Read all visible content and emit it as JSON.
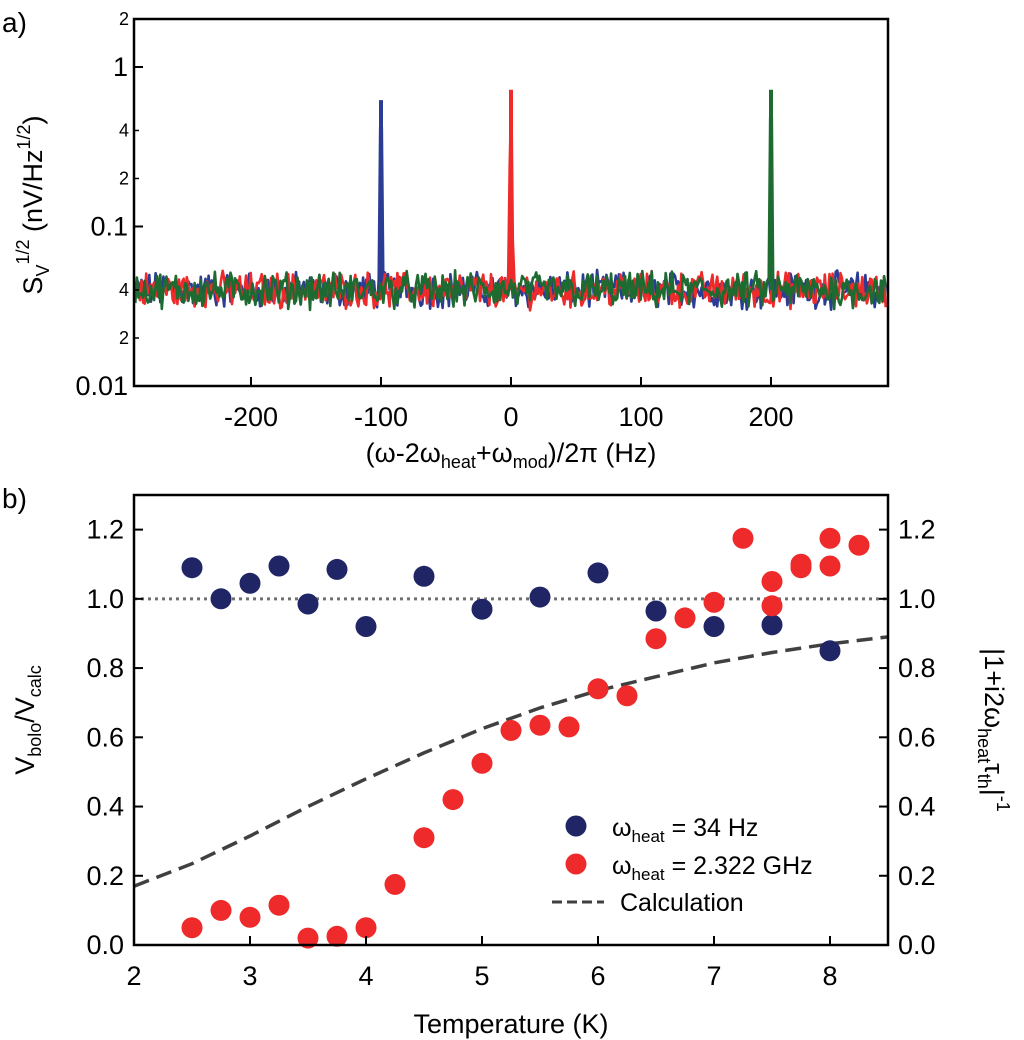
{
  "chart_data": [
    {
      "panel_label": "a)",
      "type": "line",
      "xlabel_parts": {
        "pre": "(ω-2ω",
        "sub1": "heat",
        "mid": "+ω",
        "sub2": "mod",
        "post": ")/2π (Hz)"
      },
      "ylabel_parts": {
        "s": "S",
        "sub": "V",
        "sup": "1/2",
        "unit_pre": " (nV/Hz",
        "unit_sup": "1/2",
        "unit_post": ")"
      },
      "xlim": [
        -290,
        290
      ],
      "ylim": [
        0.01,
        2
      ],
      "yscale": "log",
      "x_ticks": [
        -200,
        -100,
        0,
        100,
        200
      ],
      "x_tick_labels": [
        "-200",
        "-100",
        "0",
        "100",
        "200"
      ],
      "y_major_ticks": [
        0.01,
        0.1,
        1
      ],
      "y_major_labels": [
        "0.01",
        "0.1",
        "1"
      ],
      "y_minor_labeled": [
        {
          "v": 0.02,
          "label": "2"
        },
        {
          "v": 0.04,
          "label": "4"
        },
        {
          "v": 0.2,
          "label": "2"
        },
        {
          "v": 0.4,
          "label": "4"
        },
        {
          "v": 2,
          "label": "2"
        }
      ],
      "noise_floor": 0.04,
      "series": [
        {
          "name": "blue",
          "color": "#2b3c94",
          "peak_x": -100,
          "peak_y": 0.62
        },
        {
          "name": "red",
          "color": "#ee2a2a",
          "peak_x": 0,
          "peak_y": 0.72
        },
        {
          "name": "green",
          "color": "#1e6b32",
          "peak_x": 200,
          "peak_y": 0.72
        }
      ]
    },
    {
      "panel_label": "b)",
      "type": "scatter",
      "xlabel": "Temperature (K)",
      "ylabel_parts": {
        "v1": "V",
        "sub1": "bolo",
        "mid": "/V",
        "sub2": "calc"
      },
      "y2label_parts": {
        "pre": "|1+i2ω",
        "sub": "heat",
        "tau": "τ",
        "tau_sub": "th",
        "post": "|",
        "sup": "-1"
      },
      "xlim": [
        2,
        8.5
      ],
      "ylim": [
        0,
        1.3
      ],
      "x_ticks": [
        2,
        3,
        4,
        5,
        6,
        7,
        8
      ],
      "x_tick_labels": [
        "2",
        "3",
        "4",
        "5",
        "6",
        "7",
        "8"
      ],
      "y_ticks": [
        0,
        0.2,
        0.4,
        0.6,
        0.8,
        1.0,
        1.2
      ],
      "y_tick_labels": [
        "0.0",
        "0.2",
        "0.4",
        "0.6",
        "0.8",
        "1.0",
        "1.2"
      ],
      "reference_line": 1.0,
      "legend": {
        "position": "bottom-right",
        "entries": [
          {
            "pre": "ω",
            "sub": "heat",
            "post": " = 34 Hz",
            "color": "#1f2565",
            "kind": "marker"
          },
          {
            "pre": "ω",
            "sub": "heat",
            "post": " = 2.322 GHz",
            "color": "#ee2a2a",
            "kind": "marker"
          },
          {
            "text": "Calculation",
            "color": "#404040",
            "kind": "dashed"
          }
        ]
      },
      "series": [
        {
          "name": "ωheat = 34 Hz",
          "color": "#1f2565",
          "x": [
            2.5,
            2.75,
            3.0,
            3.25,
            3.5,
            3.75,
            4.0,
            4.5,
            5.0,
            5.5,
            6.0,
            6.5,
            7.0,
            7.5,
            8.0
          ],
          "y": [
            1.09,
            1.0,
            1.045,
            1.095,
            0.985,
            1.085,
            0.92,
            1.065,
            0.97,
            1.005,
            1.075,
            0.965,
            0.92,
            0.925,
            0.85
          ]
        },
        {
          "name": "ωheat = 2.322 GHz",
          "color": "#ee2a2a",
          "x": [
            2.5,
            2.75,
            3.0,
            3.25,
            3.5,
            3.75,
            4.0,
            4.25,
            4.5,
            4.75,
            5.0,
            5.25,
            5.5,
            5.75,
            6.0,
            6.25,
            6.5,
            6.75,
            7.0,
            7.25,
            7.5,
            7.5,
            7.75,
            7.75,
            8.0,
            8.0,
            8.25
          ],
          "y": [
            0.05,
            0.1,
            0.08,
            0.115,
            0.02,
            0.025,
            0.05,
            0.175,
            0.31,
            0.42,
            0.525,
            0.62,
            0.635,
            0.63,
            0.74,
            0.72,
            0.885,
            0.945,
            0.99,
            1.175,
            1.05,
            0.98,
            1.1,
            1.09,
            1.175,
            1.095,
            1.155
          ]
        },
        {
          "name": "Calculation",
          "type": "dashed_curve",
          "color": "#404040",
          "x": [
            2.0,
            2.5,
            3.0,
            3.5,
            4.0,
            4.5,
            5.0,
            5.5,
            6.0,
            6.5,
            7.0,
            7.5,
            8.0,
            8.5
          ],
          "y": [
            0.17,
            0.235,
            0.315,
            0.4,
            0.48,
            0.555,
            0.625,
            0.685,
            0.735,
            0.775,
            0.815,
            0.845,
            0.87,
            0.89
          ]
        }
      ]
    }
  ]
}
